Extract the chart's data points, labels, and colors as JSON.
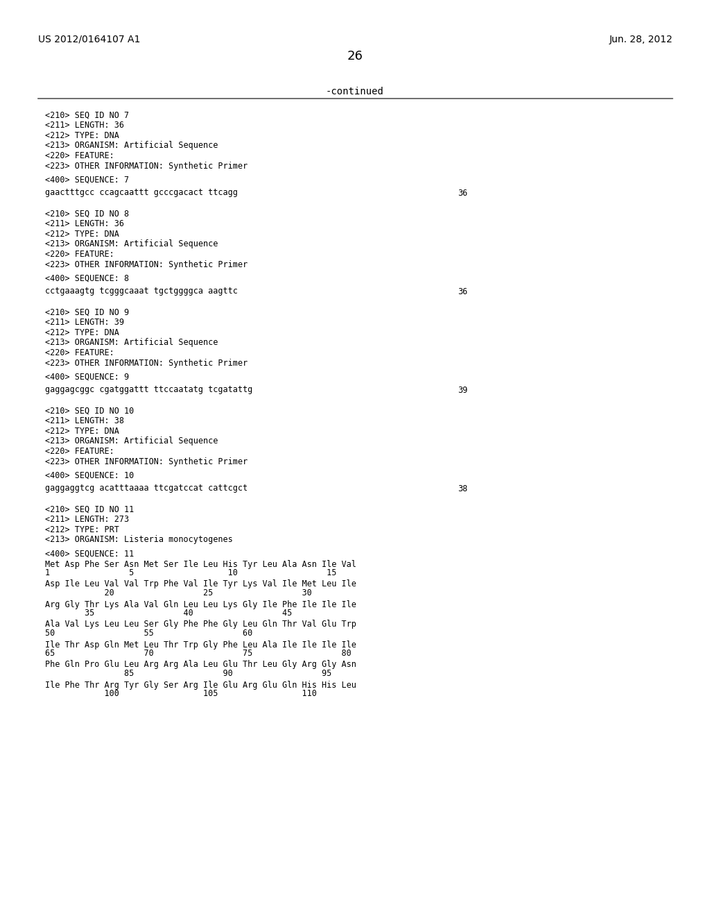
{
  "header_left": "US 2012/0164107 A1",
  "header_right": "Jun. 28, 2012",
  "page_number": "26",
  "continued_label": "-continued",
  "background_color": "#ffffff",
  "text_color": "#000000",
  "mono_font": "DejaVu Sans Mono",
  "prop_font": "DejaVu Sans",
  "content": [
    {
      "type": "seq_header",
      "lines": [
        "<210> SEQ ID NO 7",
        "<211> LENGTH: 36",
        "<212> TYPE: DNA",
        "<213> ORGANISM: Artificial Sequence",
        "<220> FEATURE:",
        "<223> OTHER INFORMATION: Synthetic Primer"
      ]
    },
    {
      "type": "seq_label",
      "text": "<400> SEQUENCE: 7"
    },
    {
      "type": "seq_data",
      "sequence": "gaactttgcc ccagcaattt gcccgacact ttcagg",
      "length": "36"
    },
    {
      "type": "seq_header",
      "lines": [
        "<210> SEQ ID NO 8",
        "<211> LENGTH: 36",
        "<212> TYPE: DNA",
        "<213> ORGANISM: Artificial Sequence",
        "<220> FEATURE:",
        "<223> OTHER INFORMATION: Synthetic Primer"
      ]
    },
    {
      "type": "seq_label",
      "text": "<400> SEQUENCE: 8"
    },
    {
      "type": "seq_data",
      "sequence": "cctgaaagtg tcgggcaaat tgctggggca aagttc",
      "length": "36"
    },
    {
      "type": "seq_header",
      "lines": [
        "<210> SEQ ID NO 9",
        "<211> LENGTH: 39",
        "<212> TYPE: DNA",
        "<213> ORGANISM: Artificial Sequence",
        "<220> FEATURE:",
        "<223> OTHER INFORMATION: Synthetic Primer"
      ]
    },
    {
      "type": "seq_label",
      "text": "<400> SEQUENCE: 9"
    },
    {
      "type": "seq_data",
      "sequence": "gaggagcggc cgatggattt ttccaatatg tcgatattg",
      "length": "39"
    },
    {
      "type": "seq_header",
      "lines": [
        "<210> SEQ ID NO 10",
        "<211> LENGTH: 38",
        "<212> TYPE: DNA",
        "<213> ORGANISM: Artificial Sequence",
        "<220> FEATURE:",
        "<223> OTHER INFORMATION: Synthetic Primer"
      ]
    },
    {
      "type": "seq_label",
      "text": "<400> SEQUENCE: 10"
    },
    {
      "type": "seq_data",
      "sequence": "gaggaggtcg acatttaaaa ttcgatccat cattcgct",
      "length": "38"
    },
    {
      "type": "seq_header",
      "lines": [
        "<210> SEQ ID NO 11",
        "<211> LENGTH: 273",
        "<212> TYPE: PRT",
        "<213> ORGANISM: Listeria monocytogenes"
      ]
    },
    {
      "type": "seq_label",
      "text": "<400> SEQUENCE: 11"
    },
    {
      "type": "prt_line",
      "text": "Met Asp Phe Ser Asn Met Ser Ile Leu His Tyr Leu Ala Asn Ile Val",
      "nums": "1                5                   10                  15"
    },
    {
      "type": "prt_line",
      "text": "Asp Ile Leu Val Val Trp Phe Val Ile Tyr Lys Val Ile Met Leu Ile",
      "nums": "            20                  25                  30"
    },
    {
      "type": "prt_line",
      "text": "Arg Gly Thr Lys Ala Val Gln Leu Leu Lys Gly Ile Phe Ile Ile Ile",
      "nums": "        35                  40                  45"
    },
    {
      "type": "prt_line",
      "text": "Ala Val Lys Leu Leu Ser Gly Phe Phe Gly Leu Gln Thr Val Glu Trp",
      "nums": "50                  55                  60"
    },
    {
      "type": "prt_line",
      "text": "Ile Thr Asp Gln Met Leu Thr Trp Gly Phe Leu Ala Ile Ile Ile Ile",
      "nums": "65                  70                  75                  80"
    },
    {
      "type": "prt_line",
      "text": "Phe Gln Pro Glu Leu Arg Arg Ala Leu Glu Thr Leu Gly Arg Gly Asn",
      "nums": "                85                  90                  95"
    },
    {
      "type": "prt_line",
      "text": "Ile Phe Thr Arg Tyr Gly Ser Arg Ile Glu Arg Glu Gln His His Leu",
      "nums": "            100                 105                 110"
    }
  ]
}
